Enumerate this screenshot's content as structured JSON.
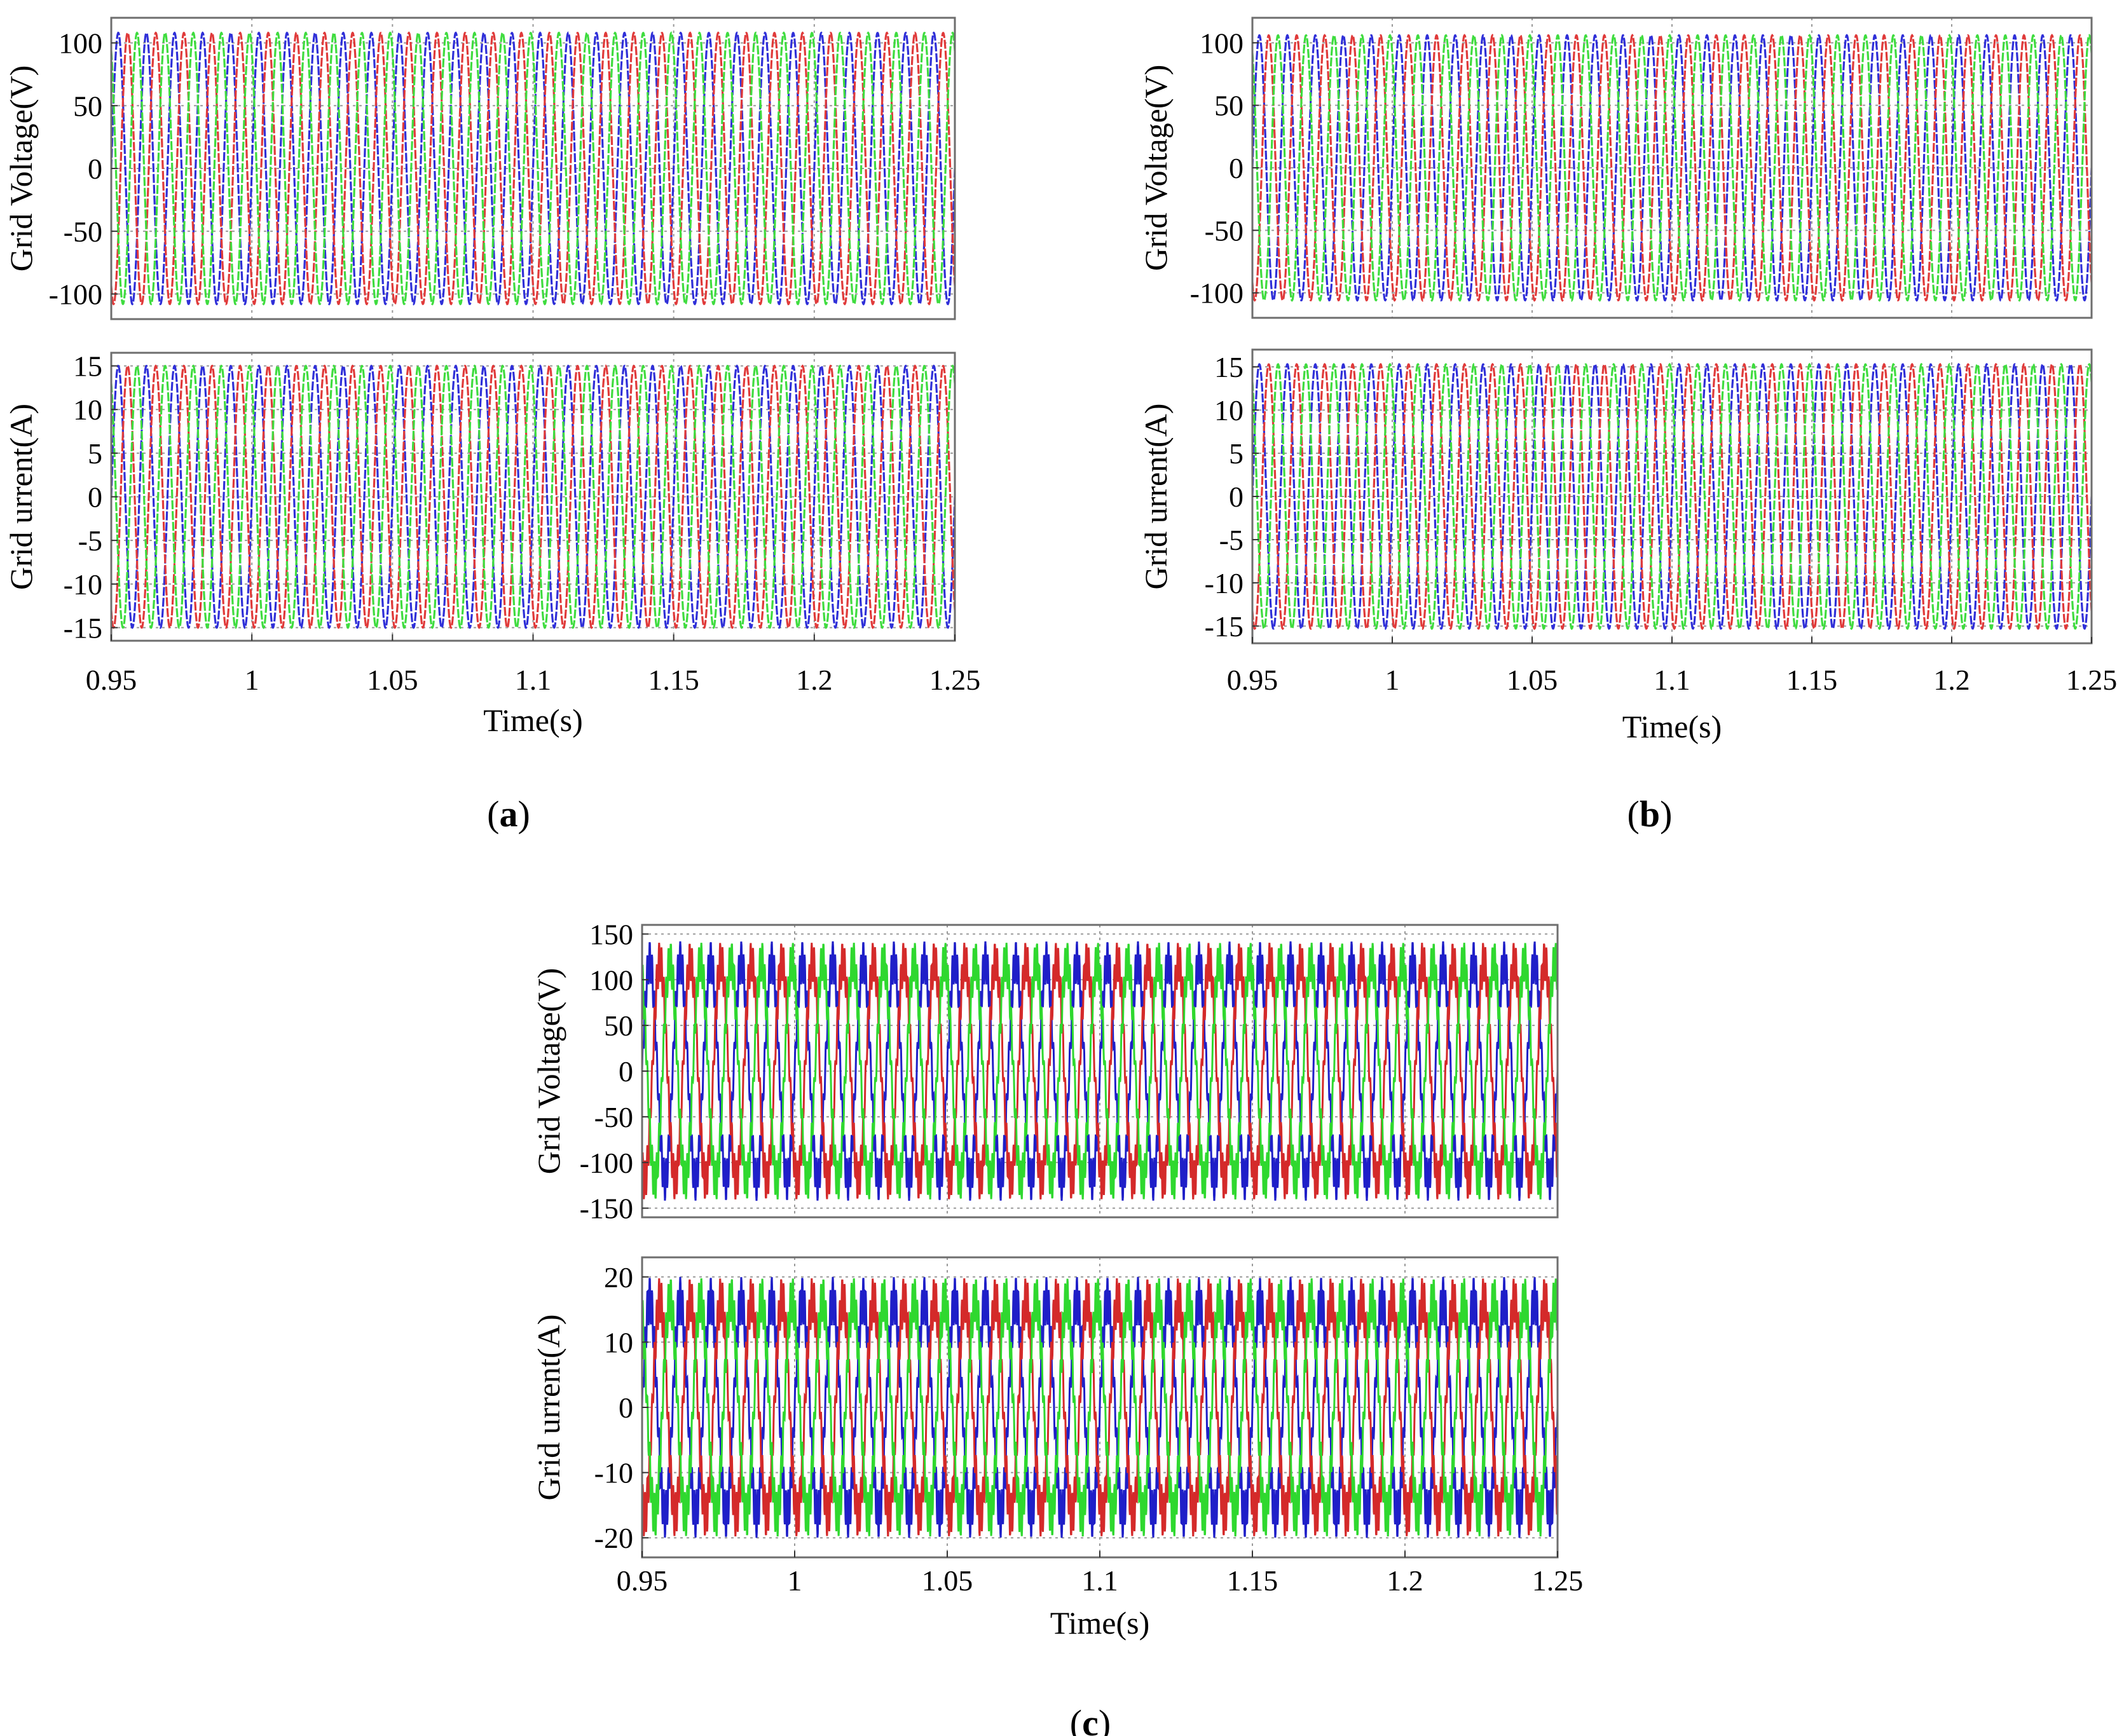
{
  "chart_data": [
    {
      "type": "line",
      "panel": "a",
      "caption": {
        "open": "(",
        "letter": "a",
        "close": ")"
      },
      "xlabel": "Time(s)",
      "xlim": [
        0.95,
        1.25
      ],
      "xticks": [
        "0.95",
        "1",
        "1.05",
        "1.1",
        "1.15",
        "1.2",
        "1.25"
      ],
      "grid": true,
      "frequency_hz": 100,
      "subplots": [
        {
          "ylabel": "Grid Voltage(V)",
          "ylim": [
            -120,
            120
          ],
          "yticks": [
            "100",
            "50",
            "0",
            "-50",
            "-100"
          ],
          "series": [
            {
              "color": "#2f2fd8",
              "amplitude": 108,
              "phase_deg": 0,
              "ripple": 0
            },
            {
              "color": "#e03a3a",
              "amplitude": 108,
              "phase_deg": -120,
              "ripple": 0
            },
            {
              "color": "#3fdc3f",
              "amplitude": 108,
              "phase_deg": 120,
              "ripple": 0
            }
          ]
        },
        {
          "ylabel": "Grid urrent(A)",
          "ylim": [
            -16.5,
            16.5
          ],
          "yticks": [
            "15",
            "10",
            "5",
            "0",
            "-5",
            "-10",
            "-15"
          ],
          "series": [
            {
              "color": "#2f2fd8",
              "amplitude": 15,
              "phase_deg": 0,
              "ripple": 0
            },
            {
              "color": "#e03a3a",
              "amplitude": 15,
              "phase_deg": -120,
              "ripple": 0
            },
            {
              "color": "#3fdc3f",
              "amplitude": 15,
              "phase_deg": 120,
              "ripple": 0
            }
          ]
        }
      ]
    },
    {
      "type": "line",
      "panel": "b",
      "caption": {
        "open": "(",
        "letter": "b",
        "close": ")"
      },
      "xlabel": "Time(s)",
      "xlim": [
        0.95,
        1.25
      ],
      "xticks": [
        "0.95",
        "1",
        "1.05",
        "1.1",
        "1.15",
        "1.2",
        "1.25"
      ],
      "grid": true,
      "frequency_hz": 100,
      "subplots": [
        {
          "ylabel": "Grid Voltage(V)",
          "ylim": [
            -120,
            120
          ],
          "yticks": [
            "100",
            "50",
            "0",
            "-50",
            "-100"
          ],
          "series": [
            {
              "color": "#2f2fd8",
              "amplitude": 106,
              "phase_deg": 0,
              "ripple": 0
            },
            {
              "color": "#e03a3a",
              "amplitude": 106,
              "phase_deg": -120,
              "ripple": 0
            },
            {
              "color": "#3fdc3f",
              "amplitude": 106,
              "phase_deg": 120,
              "ripple": 0
            }
          ]
        },
        {
          "ylabel": "Grid urrent(A)",
          "ylim": [
            -17,
            17
          ],
          "yticks": [
            "15",
            "10",
            "5",
            "0",
            "-5",
            "-10",
            "-15"
          ],
          "series": [
            {
              "color": "#2f2fd8",
              "amplitude": 15.3,
              "phase_deg": 0,
              "ripple": 0
            },
            {
              "color": "#e03a3a",
              "amplitude": 15.3,
              "phase_deg": -120,
              "ripple": 0
            },
            {
              "color": "#3fdc3f",
              "amplitude": 15.3,
              "phase_deg": 120,
              "ripple": 0
            }
          ]
        }
      ]
    },
    {
      "type": "line",
      "panel": "c",
      "caption": {
        "open": "(",
        "letter": "c",
        "close": ")"
      },
      "xlabel": "Time(s)",
      "xlim": [
        0.95,
        1.25
      ],
      "xticks": [
        "0.95",
        "1",
        "1.05",
        "1.1",
        "1.15",
        "1.2",
        "1.25"
      ],
      "grid": true,
      "frequency_hz": 100,
      "subplots": [
        {
          "ylabel": "Grid Voltage(V)",
          "ylim": [
            -160,
            160
          ],
          "yticks": [
            "150",
            "100",
            "50",
            "0",
            "-50",
            "-100",
            "-150"
          ],
          "series": [
            {
              "color": "#1f1fc8",
              "amplitude": 120,
              "phase_deg": 0,
              "ripple": 22
            },
            {
              "color": "#d42a2a",
              "amplitude": 120,
              "phase_deg": -120,
              "ripple": 22
            },
            {
              "color": "#2fd82f",
              "amplitude": 120,
              "phase_deg": 120,
              "ripple": 22
            }
          ]
        },
        {
          "ylabel": "Grid urrent(A)",
          "ylim": [
            -23,
            23
          ],
          "yticks": [
            "20",
            "10",
            "0",
            "-10",
            "-20"
          ],
          "series": [
            {
              "color": "#1f1fc8",
              "amplitude": 16.5,
              "phase_deg": 0,
              "ripple": 3.5
            },
            {
              "color": "#d42a2a",
              "amplitude": 16.5,
              "phase_deg": -120,
              "ripple": 3.5
            },
            {
              "color": "#2fd82f",
              "amplitude": 16.5,
              "phase_deg": 120,
              "ripple": 3.5
            }
          ]
        }
      ]
    }
  ]
}
